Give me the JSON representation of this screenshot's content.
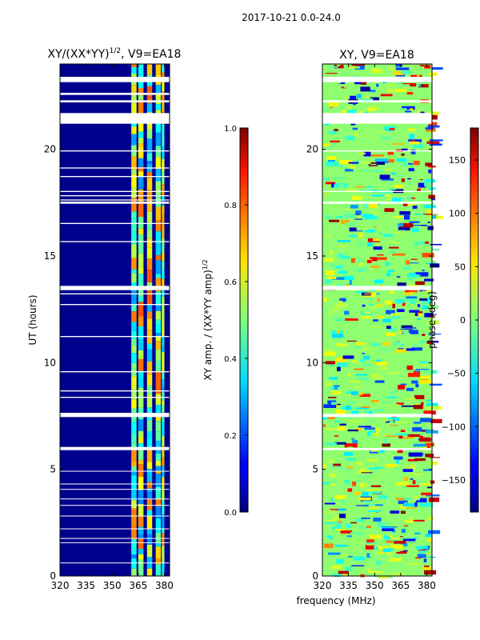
{
  "figure": {
    "suptitle": "2017-10-21 0.0-24.0",
    "shared_xlabel": "frequency (MHz)"
  },
  "chart_data": [
    {
      "type": "heatmap",
      "title": "XY/(XX*YY)^1/2, V9=EA18",
      "title_base": "XY/(XX*YY)",
      "title_exp": "1/2",
      "title_tail": ", V9=EA18",
      "xlabel": "frequency (MHz)",
      "ylabel": "UT (hours)",
      "xlim": [
        320,
        383
      ],
      "ylim": [
        0,
        24
      ],
      "xticks": [
        320,
        335,
        350,
        365,
        380
      ],
      "yticks": [
        0,
        5,
        10,
        15,
        20
      ],
      "colormap": "jet",
      "gaps_hours": [
        [
          23.15,
          23.4
        ],
        [
          22.55,
          22.65
        ],
        [
          22.2,
          22.3
        ],
        [
          21.2,
          21.7
        ],
        [
          19.9,
          19.95
        ],
        [
          19.1,
          19.15
        ],
        [
          18.7,
          18.75
        ],
        [
          18.0,
          18.05
        ],
        [
          17.8,
          17.85
        ],
        [
          17.6,
          17.65
        ],
        [
          17.45,
          17.55
        ],
        [
          16.5,
          16.55
        ],
        [
          15.65,
          15.7
        ],
        [
          13.4,
          13.6
        ],
        [
          13.2,
          13.25
        ],
        [
          12.7,
          12.75
        ],
        [
          11.2,
          11.25
        ],
        [
          9.55,
          9.6
        ],
        [
          8.65,
          8.7
        ],
        [
          8.35,
          8.4
        ],
        [
          7.45,
          7.65
        ],
        [
          5.9,
          6.05
        ],
        [
          4.9,
          4.93
        ],
        [
          4.3,
          4.33
        ],
        [
          4.05,
          4.08
        ],
        [
          3.6,
          3.63
        ],
        [
          3.3,
          3.33
        ],
        [
          2.8,
          2.83
        ],
        [
          2.2,
          2.23
        ],
        [
          1.75,
          1.78
        ],
        [
          1.55,
          1.58
        ],
        [
          0.6,
          0.63
        ]
      ],
      "bright_bands_mhz": [
        [
          361,
          364
        ],
        [
          365,
          368
        ],
        [
          370,
          373
        ],
        [
          375,
          378
        ],
        [
          378.5,
          380
        ]
      ],
      "colorbar": {
        "label": "XY amp. / (XX*YY amp)^1/2",
        "label_base": "XY amp. / (XX*YY amp)",
        "label_exp": "1/2",
        "range": [
          0.0,
          1.0
        ],
        "ticks": [
          "0.0",
          "0.2",
          "0.4",
          "0.6",
          "0.8",
          "1.0"
        ]
      }
    },
    {
      "type": "heatmap",
      "title": "XY, V9=EA18",
      "xlabel": "frequency (MHz)",
      "ylabel": "",
      "xlim": [
        320,
        383
      ],
      "ylim": [
        0,
        24
      ],
      "xticks": [
        320,
        335,
        350,
        365,
        380
      ],
      "yticks": [
        0,
        5,
        10,
        15,
        20
      ],
      "colormap": "jet",
      "gaps_hours": [
        [
          23.15,
          23.4
        ],
        [
          22.2,
          22.3
        ],
        [
          21.2,
          21.7
        ],
        [
          19.9,
          19.95
        ],
        [
          18.0,
          18.05
        ],
        [
          17.45,
          17.55
        ],
        [
          13.4,
          13.6
        ],
        [
          7.45,
          7.6
        ],
        [
          5.9,
          6.0
        ]
      ],
      "colorbar": {
        "label": "phase (deg)",
        "range": [
          -180,
          180
        ],
        "ticks": [
          "-150",
          "-100",
          "-50",
          "0",
          "50",
          "100",
          "150"
        ]
      }
    }
  ]
}
